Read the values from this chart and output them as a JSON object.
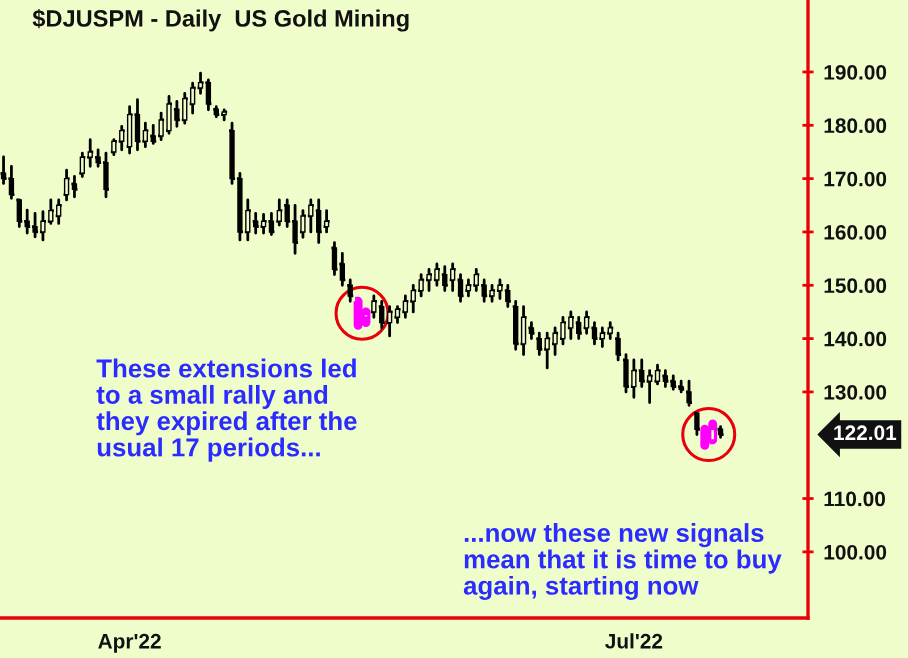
{
  "chart_data": {
    "type": "candlestick",
    "title": "$DJUSPM - Daily  US Gold Mining",
    "categories": [
      null,
      null,
      null,
      null,
      null,
      null,
      null,
      null,
      null,
      null,
      null,
      null,
      null,
      null,
      null,
      null,
      "Apr'22",
      null,
      null,
      null,
      null,
      null,
      null,
      null,
      null,
      null,
      null,
      null,
      null,
      null,
      null,
      null,
      null,
      null,
      null,
      null,
      null,
      null,
      null,
      null,
      null,
      null,
      null,
      null,
      null,
      null,
      null,
      null,
      null,
      null,
      null,
      null,
      null,
      null,
      null,
      null,
      null,
      null,
      null,
      null,
      null,
      null,
      null,
      null,
      null,
      null,
      null,
      null,
      null,
      null,
      null,
      null,
      null,
      null,
      null,
      null,
      null,
      null,
      null,
      null,
      "Jul'22",
      null,
      null,
      null,
      null,
      null,
      null,
      null,
      null,
      null,
      null,
      null
    ],
    "ohlc": [
      [
        171,
        174.1,
        169.1,
        170
      ],
      [
        170,
        172.3,
        166.3,
        167
      ],
      [
        166,
        166,
        161,
        162
      ],
      [
        162,
        164.1,
        159.8,
        161
      ],
      [
        161,
        163.5,
        159.1,
        160
      ],
      [
        160,
        163.8,
        158.5,
        162
      ],
      [
        162,
        166,
        161.6,
        164
      ],
      [
        163,
        166,
        161.6,
        165
      ],
      [
        167,
        171.6,
        166,
        170
      ],
      [
        169,
        170.4,
        166.6,
        168
      ],
      [
        171,
        174.8,
        170.4,
        174
      ],
      [
        174,
        177.3,
        172.3,
        175
      ],
      [
        174,
        175.4,
        172.3,
        173
      ],
      [
        173,
        174.8,
        166.6,
        168
      ],
      [
        175,
        177.3,
        174.5,
        177
      ],
      [
        177,
        179.8,
        175.4,
        179
      ],
      [
        176,
        183.5,
        174.8,
        182
      ],
      [
        182,
        184.8,
        175.4,
        177
      ],
      [
        177,
        180.4,
        176,
        179
      ],
      [
        178,
        180,
        176.6,
        177
      ],
      [
        178,
        182.3,
        177.3,
        181
      ],
      [
        179,
        185.4,
        178.5,
        184
      ],
      [
        183,
        184.5,
        179.8,
        181
      ],
      [
        181,
        186,
        180.4,
        185
      ],
      [
        184,
        187.9,
        182.3,
        187
      ],
      [
        187,
        189.8,
        186,
        188
      ],
      [
        188,
        188.5,
        182.9,
        184
      ],
      [
        183,
        183.5,
        181.6,
        182
      ],
      [
        182,
        182.9,
        181,
        182.5
      ],
      [
        179,
        180.4,
        169.1,
        170
      ],
      [
        170,
        171,
        158.5,
        160
      ],
      [
        160,
        166,
        158.5,
        164
      ],
      [
        162,
        163.5,
        159.8,
        161
      ],
      [
        161,
        163.3,
        159.8,
        162
      ],
      [
        162,
        163.5,
        159.5,
        160
      ],
      [
        162,
        166,
        161.3,
        164
      ],
      [
        165,
        166,
        161,
        162
      ],
      [
        162,
        165,
        156,
        158
      ],
      [
        160,
        164,
        159,
        163
      ],
      [
        163,
        166,
        160,
        165
      ],
      [
        164,
        166,
        158,
        160
      ],
      [
        161,
        164,
        160,
        162
      ],
      [
        157,
        158,
        152,
        153
      ],
      [
        154,
        156,
        150,
        151
      ],
      [
        150,
        151,
        147,
        148
      ],
      [
        147,
        147,
        142.5,
        143.5
      ],
      [
        144,
        145,
        143,
        144.5
      ],
      [
        145,
        148,
        144,
        147
      ],
      [
        146,
        147,
        142,
        143
      ],
      [
        143,
        146,
        140.5,
        145
      ],
      [
        144,
        146,
        143,
        145.5
      ],
      [
        145,
        148,
        144,
        147
      ],
      [
        147,
        150,
        145,
        149
      ],
      [
        149,
        152,
        148,
        151
      ],
      [
        151,
        153,
        149,
        152
      ],
      [
        151,
        154,
        150,
        153
      ],
      [
        152,
        153.5,
        149,
        150
      ],
      [
        151,
        154,
        149,
        153
      ],
      [
        151,
        152,
        147,
        148
      ],
      [
        149,
        151,
        148,
        150
      ],
      [
        150,
        153,
        149,
        152
      ],
      [
        150,
        151,
        147,
        148
      ],
      [
        148,
        150,
        147,
        149
      ],
      [
        149,
        151,
        147.5,
        150
      ],
      [
        149,
        150,
        146,
        147
      ],
      [
        146,
        147,
        138,
        139
      ],
      [
        139,
        146,
        137,
        144
      ],
      [
        142,
        143,
        140,
        141
      ],
      [
        140,
        141,
        137,
        138
      ],
      [
        138,
        141,
        134.5,
        140
      ],
      [
        139,
        142,
        137,
        141
      ],
      [
        140,
        144,
        139,
        143
      ],
      [
        142,
        145,
        140,
        144
      ],
      [
        143,
        144,
        140,
        141
      ],
      [
        142,
        145,
        141,
        144
      ],
      [
        142,
        143,
        139,
        140
      ],
      [
        140,
        142,
        138.5,
        141
      ],
      [
        141,
        143,
        140,
        142
      ],
      [
        140,
        141,
        136,
        137
      ],
      [
        136,
        137,
        130,
        131
      ],
      [
        131,
        136,
        129,
        134
      ],
      [
        134,
        136,
        131,
        132
      ],
      [
        132,
        134,
        128,
        133
      ],
      [
        132,
        135,
        131.5,
        134
      ],
      [
        133,
        134,
        131,
        132
      ],
      [
        132,
        133,
        130.5,
        131
      ],
      [
        131,
        132,
        130,
        130.5
      ],
      [
        130,
        132,
        127.5,
        128
      ],
      [
        126,
        126,
        122,
        123
      ],
      [
        122,
        123,
        120,
        121
      ],
      [
        121,
        124,
        121,
        123
      ],
      [
        123,
        123.5,
        121.5,
        122.01
      ]
    ],
    "colors": [
      "#000000",
      "#000000",
      "#000000",
      "#000000",
      "#000000",
      "#000000",
      "#000000",
      "#000000",
      "#000000",
      "#000000",
      "#000000",
      "#000000",
      "#000000",
      "#000000",
      "#000000",
      "#000000",
      "#000000",
      "#000000",
      "#000000",
      "#000000",
      "#000000",
      "#000000",
      "#000000",
      "#000000",
      "#000000",
      "#000000",
      "#000000",
      "#000000",
      "#000000",
      "#000000",
      "#000000",
      "#000000",
      "#000000",
      "#000000",
      "#000000",
      "#000000",
      "#000000",
      "#000000",
      "#000000",
      "#000000",
      "#000000",
      "#000000",
      "#000000",
      "#000000",
      "#000000",
      "#ff00ff",
      "#ff00ff",
      "#000000",
      "#000000",
      "#000000",
      "#000000",
      "#000000",
      "#000000",
      "#000000",
      "#000000",
      "#000000",
      "#000000",
      "#000000",
      "#000000",
      "#000000",
      "#000000",
      "#000000",
      "#000000",
      "#000000",
      "#000000",
      "#000000",
      "#000000",
      "#000000",
      "#000000",
      "#000000",
      "#000000",
      "#000000",
      "#000000",
      "#000000",
      "#000000",
      "#000000",
      "#000000",
      "#000000",
      "#000000",
      "#000000",
      "#000000",
      "#000000",
      "#000000",
      "#000000",
      "#000000",
      "#000000",
      "#000000",
      "#000000",
      "#000000",
      "#ff00ff",
      "#ff00ff",
      "#000000"
    ],
    "ylim": [
      87.6,
      203.5
    ],
    "yticks": [
      {
        "value": 100,
        "label": "100.00"
      },
      {
        "value": 110,
        "label": "110.00"
      },
      {
        "value": 130,
        "label": "130.00"
      },
      {
        "value": 140,
        "label": "140.00"
      },
      {
        "value": 150,
        "label": "150.00"
      },
      {
        "value": 160,
        "label": "160.00"
      },
      {
        "value": 170,
        "label": "170.00"
      },
      {
        "value": 180,
        "label": "180.00"
      },
      {
        "value": 190,
        "label": "190.00"
      }
    ],
    "grid": false,
    "annotations": [
      "These extensions led\nto a small rally and\nthey expired after the\nusual 17 periods...",
      "...now these new signals\nmean that it is time to buy\nagain, starting now",
      "122.01"
    ]
  }
}
